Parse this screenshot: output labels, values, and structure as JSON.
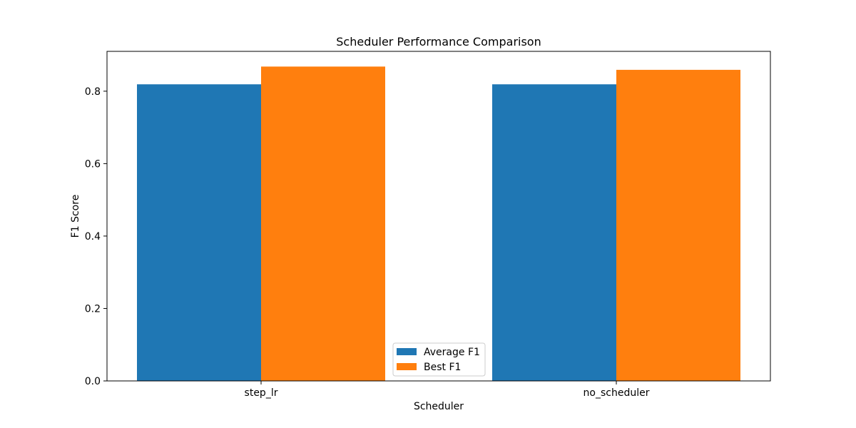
{
  "chart_data": {
    "type": "bar",
    "title": "Scheduler Performance Comparison",
    "xlabel": "Scheduler",
    "ylabel": "F1 Score",
    "categories": [
      "step_lr",
      "no_scheduler"
    ],
    "series": [
      {
        "name": "Average F1",
        "values": [
          0.819,
          0.819
        ],
        "color": "#1f77b4"
      },
      {
        "name": "Best F1",
        "values": [
          0.868,
          0.859
        ],
        "color": "#ff7f0e"
      }
    ],
    "ylim": [
      0,
      0.91
    ],
    "yticks": [
      "0.0",
      "0.2",
      "0.4",
      "0.6",
      "0.8"
    ],
    "grid": false,
    "legend_position": "lower-center"
  }
}
